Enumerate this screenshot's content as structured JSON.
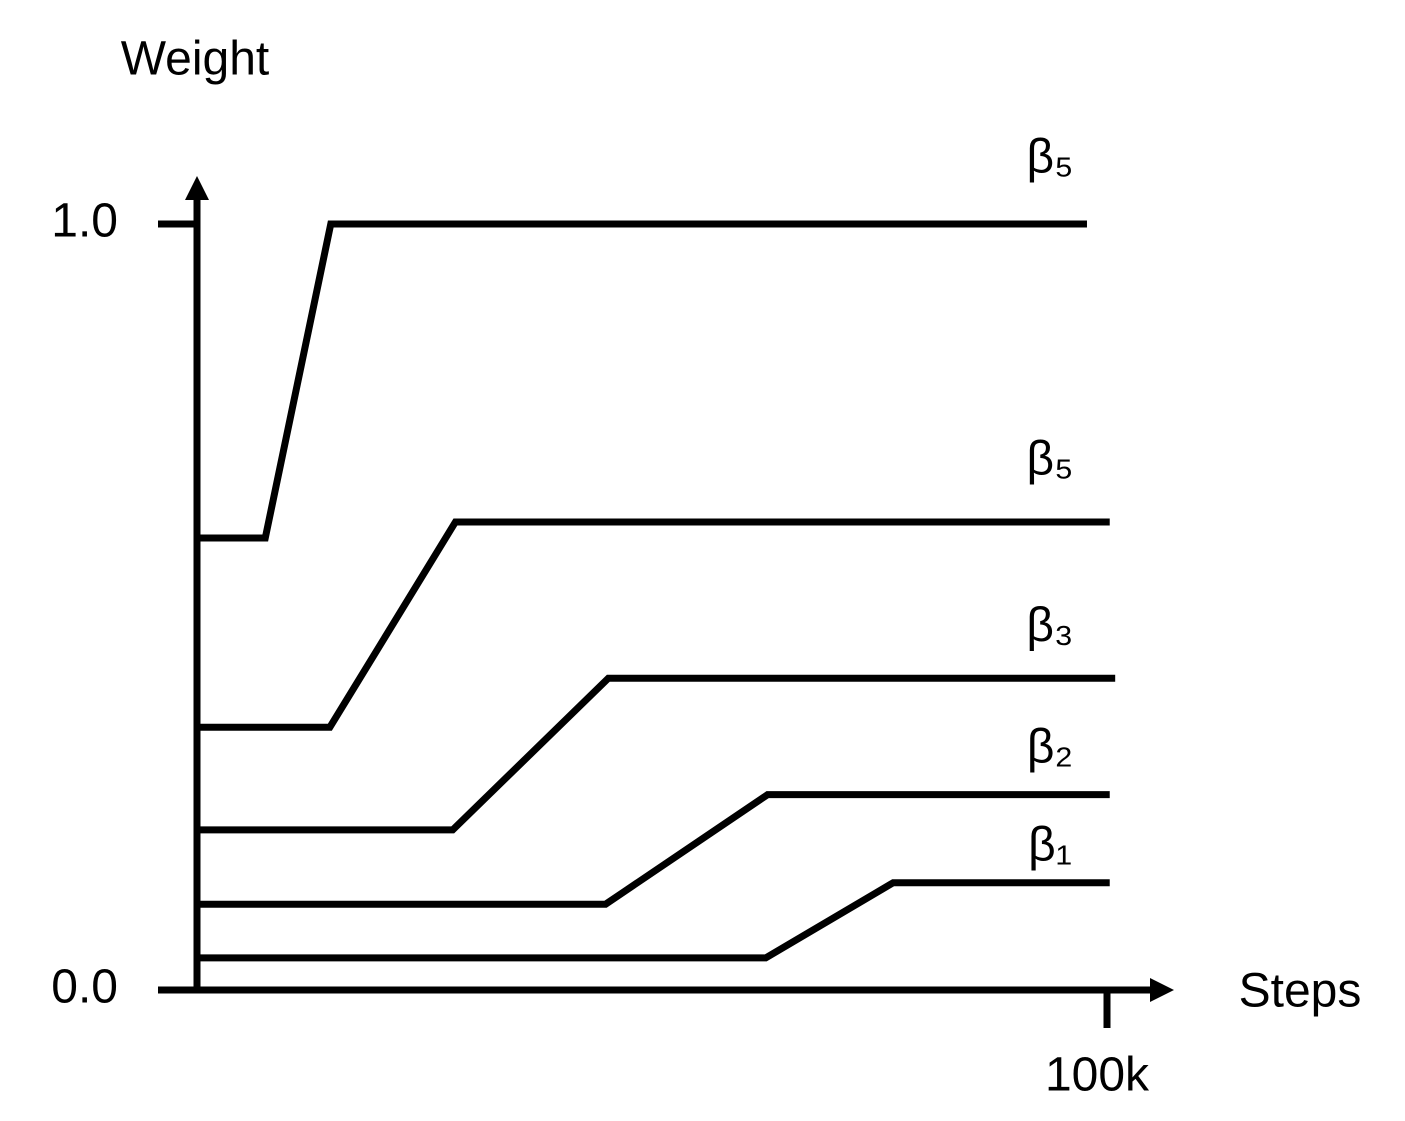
{
  "chart_data": {
    "type": "line",
    "y_label": "Weight",
    "x_label": "Steps",
    "xlim": [
      0,
      107000
    ],
    "ylim": [
      0,
      1.057
    ],
    "xticks": [
      {
        "value": 100000,
        "label": "100k"
      }
    ],
    "yticks": [
      {
        "value": 0,
        "label": "0.0"
      },
      {
        "value": 1,
        "label": "1.0"
      }
    ],
    "series": [
      {
        "name": "β₅",
        "color": "#000000",
        "x": [
          0,
          7500,
          14700,
          97800
        ],
        "values": [
          0.59,
          0.59,
          1.0,
          1.0
        ]
      },
      {
        "name": "β₅",
        "color": "#000000",
        "x": [
          0,
          14600,
          28400,
          100300
        ],
        "values": [
          0.343,
          0.343,
          0.611,
          0.611
        ]
      },
      {
        "name": "β₃",
        "color": "#000000",
        "x": [
          0,
          28100,
          45200,
          100900
        ],
        "values": [
          0.209,
          0.209,
          0.407,
          0.407
        ]
      },
      {
        "name": "β₂",
        "color": "#000000",
        "x": [
          0,
          44900,
          62700,
          100300
        ],
        "values": [
          0.112,
          0.112,
          0.255,
          0.255
        ]
      },
      {
        "name": "β₁",
        "color": "#000000",
        "x": [
          0,
          62500,
          76500,
          100300
        ],
        "values": [
          0.042,
          0.042,
          0.14,
          0.14
        ]
      }
    ]
  }
}
